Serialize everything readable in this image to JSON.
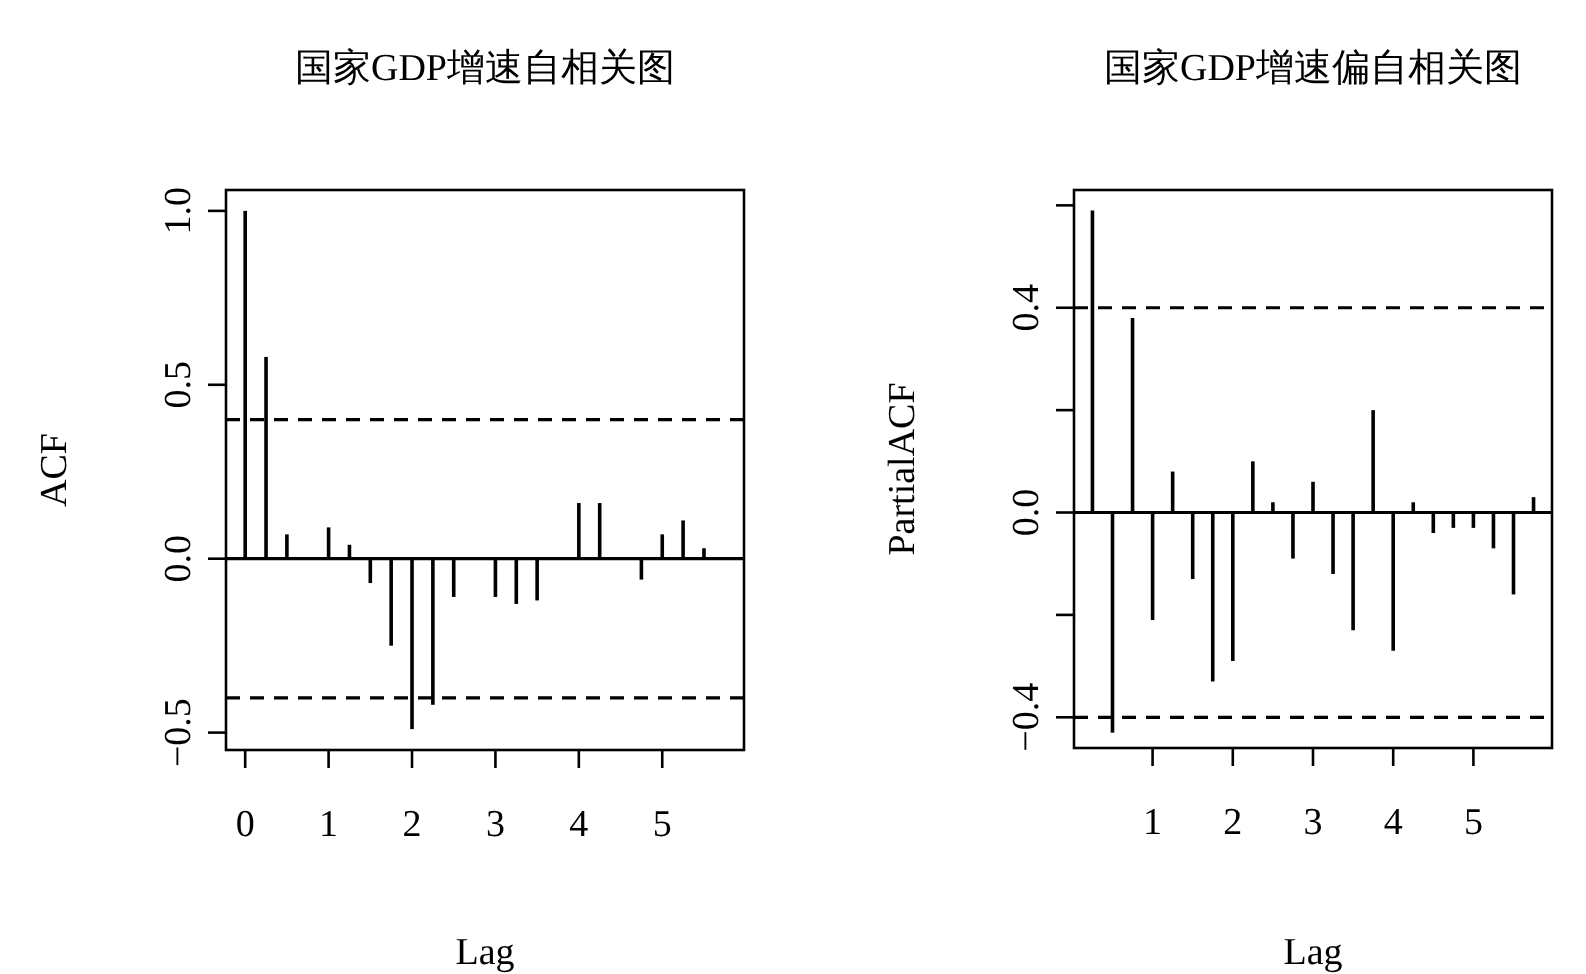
{
  "chart_data": [
    {
      "type": "bar",
      "title": "国家GDP增速自相关图",
      "xlabel": "Lag",
      "ylabel": "ACF",
      "x": [
        0,
        0.25,
        0.5,
        1,
        1.25,
        1.5,
        1.75,
        2,
        2.25,
        2.5,
        3,
        3.25,
        3.5,
        4,
        4.25,
        4.75,
        5,
        5.25,
        5.5
      ],
      "values": [
        1.0,
        0.58,
        0.07,
        0.09,
        0.04,
        -0.07,
        -0.25,
        -0.49,
        -0.42,
        -0.11,
        -0.11,
        -0.13,
        -0.12,
        0.16,
        0.16,
        -0.06,
        0.07,
        0.11,
        0.03
      ],
      "color": "#000000",
      "xlim": [
        -0.23,
        5.98
      ],
      "ylim": [
        -0.55,
        1.06
      ],
      "xticks": [
        0,
        1,
        2,
        3,
        4,
        5
      ],
      "yticks": [
        {
          "value": -0.5,
          "label": "−0.5"
        },
        {
          "value": 0,
          "label": "0.0"
        },
        {
          "value": 0.5,
          "label": "0.5"
        },
        {
          "value": 1,
          "label": "1.0"
        }
      ],
      "ref_lines": [
        {
          "axis": "y",
          "value": 0,
          "line_style": "solid"
        },
        {
          "axis": "y",
          "value": 0.4,
          "line_style": "dashed"
        },
        {
          "axis": "y",
          "value": -0.4,
          "line_style": "dashed"
        }
      ]
    },
    {
      "type": "bar",
      "title": "国家GDP增速偏自相关图",
      "xlabel": "Lag",
      "ylabel": "PartialACF",
      "x": [
        0.25,
        0.5,
        0.75,
        1,
        1.25,
        1.5,
        1.75,
        2,
        2.25,
        2.5,
        2.75,
        3,
        3.25,
        3.5,
        3.75,
        4,
        4.25,
        4.5,
        4.75,
        5,
        5.25,
        5.5,
        5.75
      ],
      "values": [
        0.59,
        -0.43,
        0.38,
        -0.21,
        0.08,
        -0.13,
        -0.33,
        -0.29,
        0.1,
        0.02,
        -0.09,
        0.06,
        -0.12,
        -0.23,
        0.2,
        -0.27,
        0.02,
        -0.04,
        -0.03,
        -0.03,
        -0.07,
        -0.16,
        0.03
      ],
      "color": "#000000",
      "xlim": [
        0.02,
        5.98
      ],
      "ylim": [
        -0.46,
        0.63
      ],
      "xticks": [
        1,
        2,
        3,
        4,
        5
      ],
      "yticks": [
        {
          "value": -0.4,
          "label": "−0.4"
        },
        {
          "value": -0.2,
          "label": null
        },
        {
          "value": 0,
          "label": "0.0"
        },
        {
          "value": 0.2,
          "label": null
        },
        {
          "value": 0.4,
          "label": "0.4"
        },
        {
          "value": 0.6,
          "label": null
        }
      ],
      "ref_lines": [
        {
          "axis": "y",
          "value": 0,
          "line_style": "solid"
        },
        {
          "axis": "y",
          "value": 0.4,
          "line_style": "dashed"
        },
        {
          "axis": "y",
          "value": -0.4,
          "line_style": "dashed"
        }
      ]
    }
  ]
}
